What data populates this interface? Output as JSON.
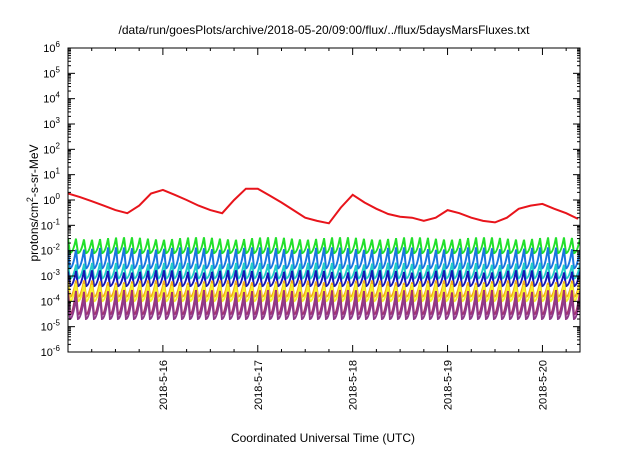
{
  "chart_data": {
    "type": "line",
    "title": "/data/run/goesPlots/archive/2018-05-20/09:00/flux/../flux/5daysMarsFluxes.txt",
    "xlabel": "Coordinated Universal Time (UTC)",
    "ylabel_base": "protons/cm",
    "ylabel_sup": "2",
    "ylabel_rest": "-s-sr-MeV",
    "y_scale": "log",
    "ylim": [
      1e-06,
      1000000
    ],
    "y_ticks": [
      {
        "base": "10",
        "exp": "-6"
      },
      {
        "base": "10",
        "exp": "-5"
      },
      {
        "base": "10",
        "exp": "-4"
      },
      {
        "base": "10",
        "exp": "-3"
      },
      {
        "base": "10",
        "exp": "-2"
      },
      {
        "base": "10",
        "exp": "-1"
      },
      {
        "base": "10",
        "exp": "0"
      },
      {
        "base": "10",
        "exp": "1"
      },
      {
        "base": "10",
        "exp": "2"
      },
      {
        "base": "10",
        "exp": "3"
      },
      {
        "base": "10",
        "exp": "4"
      },
      {
        "base": "10",
        "exp": "5"
      },
      {
        "base": "10",
        "exp": "6"
      }
    ],
    "xlim": [
      "2018-05-15T00:00",
      "2018-05-20T09:30"
    ],
    "x_ticks": [
      {
        "label": "2018-5-16",
        "date": "2018-05-16T00:00"
      },
      {
        "label": "2018-5-17",
        "date": "2018-05-17T00:00"
      },
      {
        "label": "2018-5-18",
        "date": "2018-05-18T00:00"
      },
      {
        "label": "2018-5-19",
        "date": "2018-05-19T00:00"
      },
      {
        "label": "2018-5-20",
        "date": "2018-05-20T00:00"
      }
    ],
    "grid": false,
    "legend": "none",
    "series": [
      {
        "color": "#e8141b",
        "x": [
          "2018-05-15T00:00",
          "2018-05-15T03:00",
          "2018-05-15T06:00",
          "2018-05-15T09:00",
          "2018-05-15T12:00",
          "2018-05-15T15:00",
          "2018-05-15T18:00",
          "2018-05-15T21:00",
          "2018-05-16T00:00",
          "2018-05-16T03:00",
          "2018-05-16T06:00",
          "2018-05-16T09:00",
          "2018-05-16T12:00",
          "2018-05-16T15:00",
          "2018-05-16T18:00",
          "2018-05-16T21:00",
          "2018-05-17T00:00",
          "2018-05-17T03:00",
          "2018-05-17T06:00",
          "2018-05-17T09:00",
          "2018-05-17T12:00",
          "2018-05-17T15:00",
          "2018-05-17T18:00",
          "2018-05-17T21:00",
          "2018-05-18T00:00",
          "2018-05-18T03:00",
          "2018-05-18T06:00",
          "2018-05-18T09:00",
          "2018-05-18T12:00",
          "2018-05-18T15:00",
          "2018-05-18T18:00",
          "2018-05-18T21:00",
          "2018-05-19T00:00",
          "2018-05-19T03:00",
          "2018-05-19T06:00",
          "2018-05-19T09:00",
          "2018-05-19T12:00",
          "2018-05-19T15:00",
          "2018-05-19T18:00",
          "2018-05-19T21:00",
          "2018-05-20T00:00",
          "2018-05-20T03:00",
          "2018-05-20T06:00",
          "2018-05-20T09:00"
        ],
        "y": [
          1.8,
          1.3,
          0.9,
          0.6,
          0.4,
          0.3,
          0.6,
          1.8,
          2.5,
          1.6,
          1.0,
          0.6,
          0.4,
          0.3,
          1.0,
          2.8,
          2.8,
          1.5,
          0.8,
          0.4,
          0.2,
          0.15,
          0.12,
          0.5,
          1.6,
          0.8,
          0.45,
          0.28,
          0.22,
          0.2,
          0.15,
          0.2,
          0.4,
          0.3,
          0.2,
          0.15,
          0.13,
          0.2,
          0.45,
          0.6,
          0.7,
          0.45,
          0.3,
          0.18
        ]
      }
    ],
    "bands": [
      {
        "color": "#22e02a",
        "low": 0.008,
        "high": 0.03
      },
      {
        "color": "#1976e0",
        "low": 0.002,
        "high": 0.012
      },
      {
        "color": "#22ccc8",
        "low": 0.0008,
        "high": 0.003
      },
      {
        "color": "#1517b5",
        "low": 0.0004,
        "high": 0.0015
      },
      {
        "color": "#f2a91a",
        "low": 0.00015,
        "high": 0.0006
      },
      {
        "color": "#f5f22c",
        "low": 0.0001,
        "high": 0.00045
      },
      {
        "color": "#a8306e",
        "low": 3e-05,
        "high": 0.00025
      },
      {
        "color": "#8e3a8a",
        "low": 2e-05,
        "high": 0.00015
      }
    ]
  }
}
